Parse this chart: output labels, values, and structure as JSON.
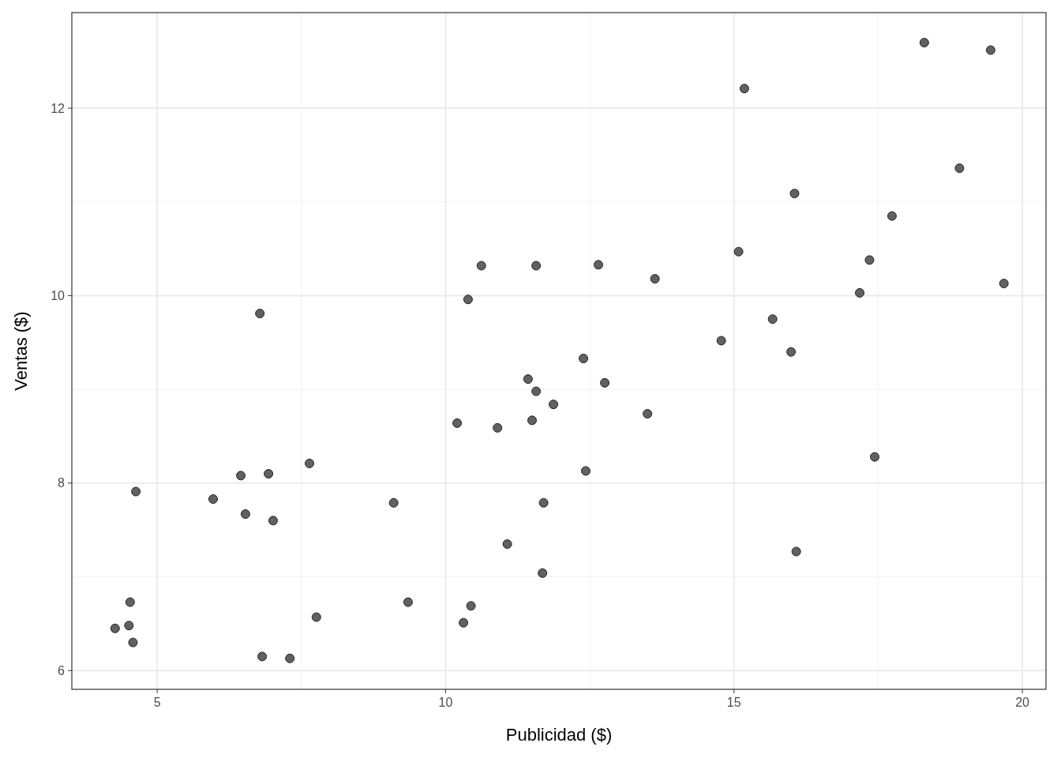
{
  "chart_data": {
    "type": "scatter",
    "xlabel": "Publicidad ($)",
    "ylabel": "Ventas ($)",
    "xlim": [
      3.52,
      20.41
    ],
    "ylim": [
      5.8,
      13.02
    ],
    "xticks": [
      5,
      10,
      15,
      20
    ],
    "yticks": [
      6,
      8,
      10,
      12
    ],
    "grid": true,
    "marker": "circle",
    "series": [
      {
        "color": "#595959",
        "x": [
          18.3,
          19.45,
          15.18,
          18.91,
          16.05,
          17.74,
          15.08,
          17.35,
          10.62,
          11.57,
          12.65,
          13.63,
          19.68,
          17.18,
          10.39,
          6.78,
          15.67,
          14.78,
          15.99,
          12.39,
          11.43,
          12.76,
          11.57,
          11.87,
          13.5,
          10.2,
          11.5,
          10.9,
          17.44,
          7.64,
          12.43,
          6.45,
          6.93,
          4.63,
          5.97,
          9.1,
          11.7,
          6.53,
          7.01,
          11.07,
          16.08,
          11.68,
          4.53,
          9.35,
          10.44,
          7.76,
          4.27,
          4.51,
          10.31,
          4.58,
          6.82,
          7.3
        ],
        "values": [
          12.7,
          12.62,
          12.21,
          11.36,
          11.09,
          10.85,
          10.47,
          10.38,
          10.32,
          10.32,
          10.33,
          10.18,
          10.13,
          10.03,
          9.96,
          9.81,
          9.75,
          9.52,
          9.4,
          9.33,
          9.11,
          9.07,
          8.98,
          8.84,
          8.74,
          8.64,
          8.67,
          8.59,
          8.28,
          8.21,
          8.13,
          8.08,
          8.1,
          7.91,
          7.83,
          7.79,
          7.79,
          7.67,
          7.6,
          7.35,
          7.27,
          7.04,
          6.73,
          6.73,
          6.69,
          6.57,
          6.45,
          6.48,
          6.51,
          6.3,
          6.15,
          6.13
        ]
      }
    ]
  }
}
